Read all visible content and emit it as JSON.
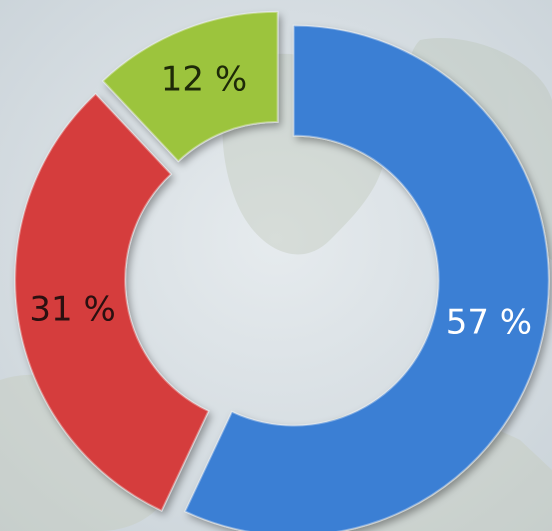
{
  "chart_data": {
    "type": "donut",
    "categories": [
      null,
      null,
      null
    ],
    "values": [
      57,
      31,
      12
    ],
    "value_labels": [
      "57 %",
      "31 %",
      "12 %"
    ],
    "colors": [
      "#3b7fd4",
      "#d53c3c",
      "#9cc43c"
    ],
    "label_colors": [
      "#ffffff",
      "#2a1010",
      "#1e2a08"
    ]
  }
}
